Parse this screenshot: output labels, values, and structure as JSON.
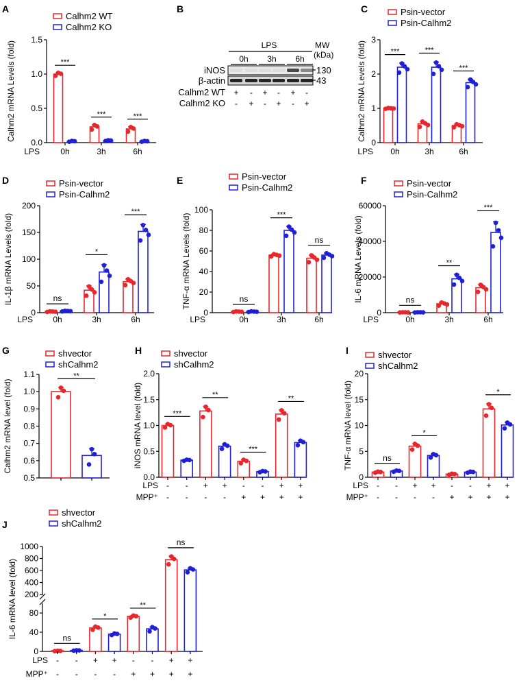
{
  "colors": {
    "red": "#e8262b",
    "blue": "#1f1fd6",
    "axis": "#000000"
  },
  "blot": {
    "letter": "B",
    "treatment": "LPS",
    "mw_label": "MW",
    "kda_label": "(kDa)",
    "timepoints": [
      "0h",
      "3h",
      "6h"
    ],
    "bands": [
      {
        "name": "iNOS",
        "mw": "130"
      },
      {
        "name": "β-actin",
        "mw": "43"
      }
    ],
    "rows": [
      {
        "label": "Calhm2 WT",
        "signs": [
          "+",
          "-",
          "+",
          "-",
          "+",
          "-"
        ]
      },
      {
        "label": "Calhm2 KO",
        "signs": [
          "-",
          "+",
          "-",
          "+",
          "-",
          "+"
        ]
      }
    ]
  },
  "chart_data": [
    {
      "id": "A",
      "type": "bar",
      "letter": "A",
      "ylabel": "Calhm2 mRNA Levels (fold)",
      "ylim": [
        0,
        1.5
      ],
      "ticks": [
        "0.0",
        "0.5",
        "1.0",
        "1.5"
      ],
      "tick_values": [
        0,
        0.5,
        1.0,
        1.5
      ],
      "row_label": "LPS",
      "categories": [
        "0h",
        "3h",
        "6h"
      ],
      "series": [
        {
          "name": "Calhm2 WT",
          "values": [
            1.0,
            0.23,
            0.2
          ],
          "sem": [
            0.02,
            0.03,
            0.03
          ]
        },
        {
          "name": "Calhm2 KO",
          "values": [
            0.02,
            0.03,
            0.02
          ],
          "sem": [
            0.005,
            0.005,
            0.005
          ]
        }
      ],
      "significance": [
        "***",
        "***",
        "***"
      ]
    },
    {
      "id": "C",
      "type": "bar",
      "letter": "C",
      "ylabel": "Calhm2 mRNA Levels (fold)",
      "ylim": [
        0,
        3
      ],
      "ticks": [
        "0",
        "1",
        "2",
        "3"
      ],
      "tick_values": [
        0,
        1,
        2,
        3
      ],
      "row_label": "LPS",
      "categories": [
        "0h",
        "3h",
        "6h"
      ],
      "series": [
        {
          "name": "Psin-vector",
          "values": [
            1.0,
            0.55,
            0.5
          ],
          "sem": [
            0.01,
            0.07,
            0.04
          ]
        },
        {
          "name": "Psin-Calhm2",
          "values": [
            2.2,
            2.2,
            1.75
          ],
          "sem": [
            0.12,
            0.15,
            0.1
          ]
        }
      ],
      "significance": [
        "***",
        "***",
        "***"
      ]
    },
    {
      "id": "D",
      "type": "bar",
      "letter": "D",
      "ylabel": "IL-1β mRNA Levels (fold)",
      "ylim": [
        0,
        200
      ],
      "ticks": [
        "0",
        "50",
        "100",
        "150",
        "200"
      ],
      "tick_values": [
        0,
        50,
        100,
        150,
        200
      ],
      "row_label": "LPS",
      "categories": [
        "0h",
        "3h",
        "6h"
      ],
      "series": [
        {
          "name": "Psin-vector",
          "values": [
            2,
            42,
            58
          ],
          "sem": [
            0.5,
            8,
            5
          ]
        },
        {
          "name": "Psin-Calhm2",
          "values": [
            3,
            76,
            152
          ],
          "sem": [
            0.5,
            14,
            13
          ]
        }
      ],
      "significance": [
        "ns",
        "*",
        "***"
      ]
    },
    {
      "id": "E",
      "type": "bar",
      "letter": "E",
      "ylabel": "TNF-α mRNA Levels (fold)",
      "ylim": [
        0,
        100
      ],
      "ticks": [
        "0",
        "20",
        "40",
        "60",
        "80",
        "100"
      ],
      "tick_values": [
        0,
        20,
        40,
        60,
        80,
        100
      ],
      "row_label": "LPS",
      "categories": [
        "0h",
        "3h",
        "6h"
      ],
      "series": [
        {
          "name": "Psin-vector",
          "values": [
            1,
            56,
            53
          ],
          "sem": [
            0.3,
            1,
            3
          ]
        },
        {
          "name": "Psin-Calhm2",
          "values": [
            1,
            80,
            56
          ],
          "sem": [
            0.3,
            4,
            2
          ]
        }
      ],
      "significance": [
        "ns",
        "***",
        "ns"
      ]
    },
    {
      "id": "F",
      "type": "bar",
      "letter": "F",
      "ylabel": "IL-6 mRNA Levels (fold)",
      "ylim": [
        0,
        60000
      ],
      "ticks": [
        "0",
        "20000",
        "40000",
        "60000"
      ],
      "tick_values": [
        0,
        20000,
        40000,
        60000
      ],
      "row_label": "LPS",
      "categories": [
        "0h",
        "3h",
        "6h"
      ],
      "series": [
        {
          "name": "Psin-vector",
          "values": [
            200,
            5000,
            14000
          ],
          "sem": [
            50,
            800,
            1800
          ]
        },
        {
          "name": "Psin-Calhm2",
          "values": [
            200,
            19000,
            45000
          ],
          "sem": [
            50,
            2500,
            6000
          ]
        }
      ],
      "significance": [
        "ns",
        "**",
        "***"
      ]
    },
    {
      "id": "G",
      "type": "bar",
      "letter": "G",
      "ylabel": "Calhm2 mRNA level (fold)",
      "ylim": [
        0.5,
        1.1
      ],
      "ticks": [
        "0.5",
        "0.6",
        "0.7",
        "0.8",
        "0.9",
        "1.0",
        "1.1"
      ],
      "tick_values": [
        0.5,
        0.6,
        0.7,
        0.8,
        0.9,
        1.0,
        1.1
      ],
      "legend": [
        "shvector",
        "shCalhm2"
      ],
      "values": [
        1.0,
        0.63
      ],
      "sem": [
        0.025,
        0.04
      ],
      "significance": [
        "**"
      ]
    },
    {
      "id": "H",
      "type": "bar",
      "letter": "H",
      "ylabel": "iNOS mRNA level (fold)",
      "ylim": [
        0,
        2
      ],
      "ticks": [
        "0.0",
        "0.5",
        "1.0",
        "1.5",
        "2.0"
      ],
      "tick_values": [
        0,
        0.5,
        1.0,
        1.5,
        2.0
      ],
      "legend": [
        "shvector",
        "shCalhm2"
      ],
      "values": [
        1.0,
        0.33,
        1.28,
        0.6,
        0.31,
        0.11,
        1.22,
        0.67
      ],
      "sem": [
        0.03,
        0.01,
        0.09,
        0.04,
        0.03,
        0.01,
        0.08,
        0.04
      ],
      "rows": [
        {
          "label": "LPS",
          "signs": [
            "-",
            "-",
            "+",
            "+",
            "-",
            "-",
            "+",
            "+"
          ]
        },
        {
          "label": "MPP⁺",
          "signs": [
            "-",
            "-",
            "-",
            "-",
            "+",
            "+",
            "+",
            "+"
          ]
        }
      ],
      "significance": [
        "***",
        "**",
        "***",
        "**"
      ]
    },
    {
      "id": "I",
      "type": "bar",
      "letter": "I",
      "ylabel": "TNF-α mRNA level (fold)",
      "ylim": [
        0,
        20
      ],
      "ticks": [
        "0",
        "5",
        "10",
        "15",
        "20"
      ],
      "tick_values": [
        0,
        5,
        10,
        15,
        20
      ],
      "legend": [
        "shvector",
        "shCalhm2"
      ],
      "values": [
        1.0,
        1.2,
        6.0,
        4.2,
        0.6,
        1.0,
        13.2,
        10.1
      ],
      "sem": [
        0.1,
        0.1,
        0.5,
        0.3,
        0.1,
        0.1,
        1.0,
        0.5
      ],
      "rows": [
        {
          "label": "LPS",
          "signs": [
            "-",
            "-",
            "+",
            "+",
            "-",
            "-",
            "+",
            "+"
          ]
        },
        {
          "label": "MPP⁺",
          "signs": [
            "-",
            "-",
            "-",
            "-",
            "+",
            "+",
            "+",
            "+"
          ]
        }
      ],
      "significance": [
        "ns",
        "*",
        "",
        "*"
      ]
    },
    {
      "id": "J",
      "type": "bar",
      "letter": "J",
      "ylabel": "IL-6 mRNA level (fold)",
      "ylim": [
        0,
        1000
      ],
      "axis_break": [
        100,
        200
      ],
      "ticks": [
        "0",
        "40",
        "80",
        "200",
        "400",
        "600",
        "800",
        "1000"
      ],
      "tick_values": [
        0,
        40,
        80,
        200,
        400,
        600,
        800,
        1000
      ],
      "legend": [
        "shvector",
        "shCalhm2"
      ],
      "values": [
        1,
        2,
        49,
        36,
        73,
        47,
        780,
        610
      ],
      "sem": [
        0.3,
        0.3,
        3,
        1.5,
        2,
        4,
        60,
        30
      ],
      "rows": [
        {
          "label": "LPS",
          "signs": [
            "-",
            "-",
            "+",
            "+",
            "-",
            "-",
            "+",
            "+"
          ]
        },
        {
          "label": "MPP⁺",
          "signs": [
            "-",
            "-",
            "-",
            "-",
            "+",
            "+",
            "+",
            "+"
          ]
        }
      ],
      "significance": [
        "ns",
        "*",
        "**",
        "ns"
      ]
    }
  ]
}
